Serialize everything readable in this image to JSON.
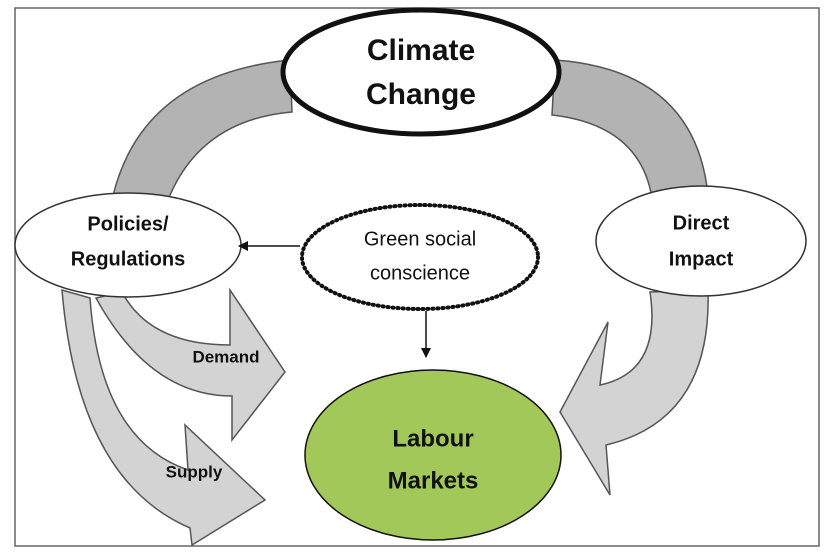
{
  "nodes": [
    {
      "label": [
        "Climate",
        "Change"
      ]
    },
    {
      "label": [
        "Policies/",
        "Regulations"
      ]
    },
    {
      "label": [
        "Green social",
        "conscience"
      ]
    },
    {
      "label": [
        "Direct",
        "Impact"
      ]
    },
    {
      "label": [
        "Labour",
        "Markets"
      ]
    }
  ],
  "arrows": [
    {
      "label": "Demand"
    },
    {
      "label": "Supply"
    }
  ]
}
